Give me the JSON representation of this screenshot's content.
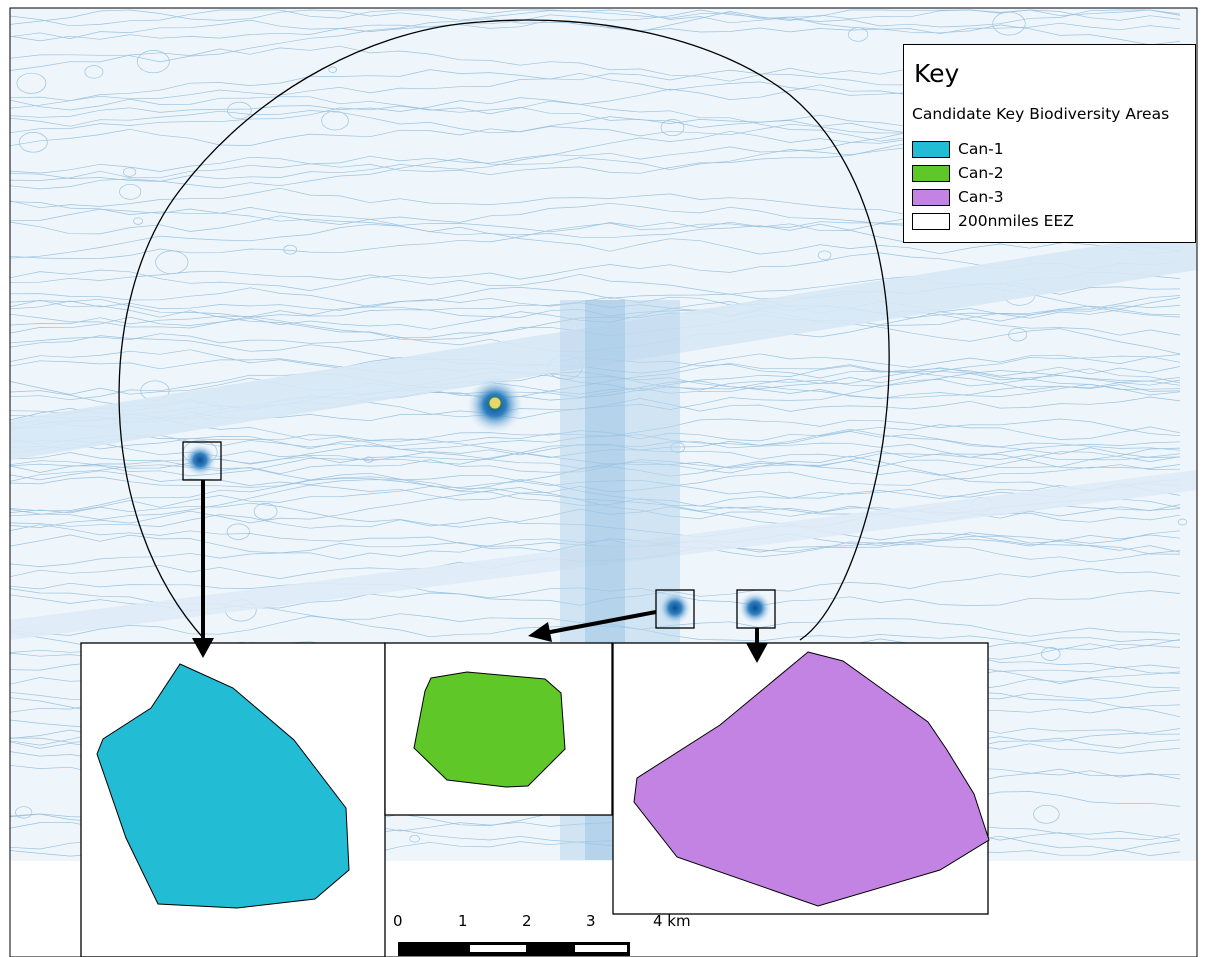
{
  "legend": {
    "title": "Key",
    "subtitle": "Candidate Key Biodiversity Areas",
    "items": [
      {
        "label": "Can-1",
        "color": "#22bcd5"
      },
      {
        "label": "Can-2",
        "color": "#5fc828"
      },
      {
        "label": "Can-3",
        "color": "#c383e3"
      },
      {
        "label": "200nmiles EEZ",
        "color": "#ffffff"
      }
    ]
  },
  "scale_bar": {
    "labels": [
      "0",
      "1",
      "2",
      "3",
      "4 km"
    ]
  },
  "colors": {
    "contour": "#7fb3d6",
    "deep": "#1f6fb2",
    "outline": "#000000"
  }
}
